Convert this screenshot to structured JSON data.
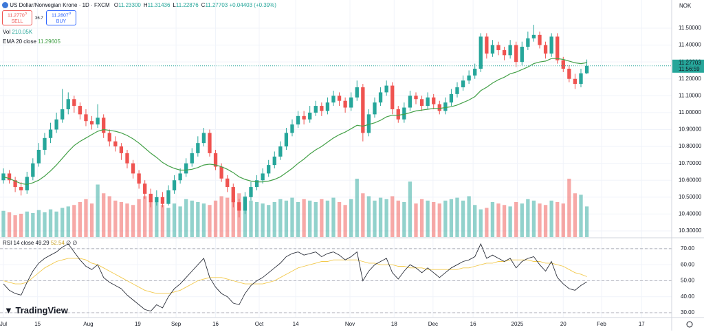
{
  "chart_data": {
    "type": "candlestick",
    "title": "US Dollar/Norwegian Krone · 1D · FXCM",
    "header": [
      {
        "key": "O",
        "value": "11.23300"
      },
      {
        "key": "H",
        "value": "11.31436"
      },
      {
        "key": "L",
        "value": "11.22876"
      },
      {
        "key": "C",
        "value": "11.27703"
      }
    ],
    "change": "+0.04403 (+0.39%)",
    "trade": {
      "sell_price": "11.2770",
      "sell_pip": "3",
      "sell": "SELL",
      "spread": "36.7",
      "buy_price": "11.2807",
      "buy_pip": "0",
      "buy": "BUY"
    },
    "currency": "NOK",
    "up_color": "#26a69a",
    "down_color": "#ef5350",
    "ylim": [
      10.2634,
      11.6667
    ],
    "yticks": [
      {
        "value": 10.3,
        "label": "10.30000"
      },
      {
        "value": 10.4,
        "label": "10.40000"
      },
      {
        "value": 10.5,
        "label": "10.50000"
      },
      {
        "value": 10.6,
        "label": "10.60000"
      },
      {
        "value": 10.7,
        "label": "10.70000"
      },
      {
        "value": 10.8,
        "label": "10.80000"
      },
      {
        "value": 10.9,
        "label": "10.90000"
      },
      {
        "value": 11.0,
        "label": "11.00000"
      },
      {
        "value": 11.1,
        "label": "11.10000"
      },
      {
        "value": 11.2,
        "label": "11.20000"
      },
      {
        "value": 11.3,
        "label": "11.30000"
      },
      {
        "value": 11.4,
        "label": "11.40000"
      },
      {
        "value": 11.5,
        "label": "11.50000"
      }
    ],
    "xlim": [
      -0.58,
      113.4
    ],
    "xticks": [
      {
        "value": 0,
        "label": "Jul"
      },
      {
        "value": 5.8,
        "label": "15"
      },
      {
        "value": 14.4,
        "label": "Aug"
      },
      {
        "value": 22.8,
        "label": "19"
      },
      {
        "value": 29.3,
        "label": "Sep"
      },
      {
        "value": 36.0,
        "label": "16"
      },
      {
        "value": 43.4,
        "label": "Oct"
      },
      {
        "value": 49.6,
        "label": "14"
      },
      {
        "value": 58.8,
        "label": "Nov"
      },
      {
        "value": 66.3,
        "label": "18"
      },
      {
        "value": 72.9,
        "label": "Dec"
      },
      {
        "value": 79.7,
        "label": "16"
      },
      {
        "value": 87.2,
        "label": "2025"
      },
      {
        "value": 95.0,
        "label": "20"
      },
      {
        "value": 101.5,
        "label": "Feb"
      },
      {
        "value": 108.3,
        "label": "17"
      }
    ],
    "candles": {
      "open": [
        10.6,
        10.64,
        10.6,
        10.56,
        10.54,
        10.62,
        10.7,
        10.78,
        10.85,
        10.9,
        10.96,
        11.02,
        11.08,
        11.04,
        10.99,
        10.95,
        10.93,
        10.97,
        10.88,
        10.83,
        10.8,
        10.76,
        10.7,
        10.64,
        10.58,
        10.52,
        10.47,
        10.5,
        10.46,
        10.54,
        10.6,
        10.64,
        10.7,
        10.76,
        10.82,
        10.88,
        10.76,
        10.68,
        10.61,
        10.56,
        10.47,
        10.42,
        10.5,
        10.56,
        10.6,
        10.64,
        10.69,
        10.74,
        10.8,
        10.88,
        10.93,
        10.98,
        10.96,
        11.0,
        11.04,
        11.01,
        11.06,
        11.1,
        11.07,
        11.03,
        11.09,
        11.15,
        10.88,
        10.99,
        11.06,
        11.12,
        11.16,
        11.02,
        10.96,
        11.03,
        11.1,
        11.08,
        11.04,
        11.09,
        11.05,
        11.01,
        11.06,
        11.11,
        11.15,
        11.19,
        11.22,
        11.26,
        11.45,
        11.35,
        11.4,
        11.37,
        11.34,
        11.4,
        11.3,
        11.39,
        11.44,
        11.46,
        11.4,
        11.35,
        11.45,
        11.31,
        11.26,
        11.2,
        11.17,
        11.233
      ],
      "high": [
        10.67,
        10.66,
        10.62,
        10.59,
        10.65,
        10.73,
        10.82,
        10.88,
        10.94,
        11.0,
        11.14,
        11.12,
        11.1,
        11.06,
        11.02,
        10.98,
        11.05,
        10.99,
        10.9,
        10.86,
        10.82,
        10.78,
        10.72,
        10.66,
        10.6,
        10.55,
        10.54,
        10.53,
        10.57,
        10.63,
        10.67,
        10.73,
        10.79,
        10.86,
        10.91,
        10.9,
        10.78,
        10.7,
        10.63,
        10.58,
        10.49,
        10.53,
        10.59,
        10.63,
        10.67,
        10.72,
        10.77,
        10.83,
        10.91,
        10.96,
        11.01,
        11.01,
        11.04,
        11.07,
        11.06,
        11.09,
        11.13,
        11.12,
        11.09,
        11.12,
        11.19,
        11.17,
        11.02,
        11.09,
        11.15,
        11.19,
        11.18,
        11.04,
        11.06,
        11.13,
        11.12,
        11.1,
        11.12,
        11.11,
        11.07,
        11.09,
        11.14,
        11.18,
        11.22,
        11.25,
        11.29,
        11.47,
        11.47,
        11.43,
        11.42,
        11.39,
        11.43,
        11.42,
        11.42,
        11.48,
        11.52,
        11.48,
        11.42,
        11.47,
        11.47,
        11.33,
        11.28,
        11.23,
        11.26,
        11.31436
      ],
      "low": [
        10.58,
        10.58,
        10.53,
        10.51,
        10.52,
        10.6,
        10.68,
        10.75,
        10.82,
        10.88,
        10.94,
        10.99,
        11.0,
        10.96,
        10.92,
        10.9,
        10.91,
        10.85,
        10.8,
        10.77,
        10.72,
        10.67,
        10.61,
        10.55,
        10.49,
        10.44,
        10.45,
        10.44,
        10.45,
        10.52,
        10.58,
        10.62,
        10.68,
        10.74,
        10.8,
        10.74,
        10.66,
        10.59,
        10.53,
        10.44,
        10.38,
        10.4,
        10.48,
        10.54,
        10.58,
        10.62,
        10.67,
        10.72,
        10.78,
        10.86,
        10.91,
        10.93,
        10.94,
        10.98,
        10.98,
        10.99,
        11.04,
        11.04,
        11.0,
        11.01,
        11.07,
        10.83,
        10.86,
        10.97,
        11.04,
        11.1,
        10.99,
        10.94,
        10.94,
        11.01,
        11.05,
        11.01,
        11.02,
        11.02,
        10.99,
        10.99,
        11.04,
        11.09,
        11.13,
        11.17,
        11.2,
        11.24,
        11.32,
        11.33,
        11.34,
        11.31,
        11.32,
        11.27,
        11.28,
        11.37,
        11.42,
        11.38,
        11.32,
        11.33,
        11.29,
        11.24,
        11.18,
        11.14,
        11.15,
        11.22876
      ],
      "close": [
        10.64,
        10.6,
        10.56,
        10.54,
        10.62,
        10.7,
        10.78,
        10.85,
        10.9,
        10.96,
        11.02,
        11.08,
        11.04,
        10.99,
        10.95,
        10.93,
        10.97,
        10.88,
        10.83,
        10.8,
        10.76,
        10.7,
        10.64,
        10.58,
        10.52,
        10.47,
        10.5,
        10.46,
        10.54,
        10.6,
        10.64,
        10.7,
        10.76,
        10.82,
        10.88,
        10.76,
        10.68,
        10.61,
        10.56,
        10.47,
        10.42,
        10.5,
        10.56,
        10.6,
        10.64,
        10.69,
        10.74,
        10.8,
        10.88,
        10.93,
        10.98,
        10.96,
        11.0,
        11.04,
        11.01,
        11.06,
        11.1,
        11.07,
        11.03,
        11.09,
        11.15,
        10.88,
        10.99,
        11.06,
        11.12,
        11.16,
        11.02,
        10.96,
        11.03,
        11.1,
        11.08,
        11.04,
        11.09,
        11.05,
        11.01,
        11.06,
        11.11,
        11.15,
        11.19,
        11.22,
        11.26,
        11.45,
        11.35,
        11.4,
        11.37,
        11.34,
        11.4,
        11.3,
        11.39,
        11.44,
        11.46,
        11.4,
        11.35,
        11.45,
        11.31,
        11.26,
        11.2,
        11.17,
        11.233,
        11.27703
      ]
    },
    "last_price": {
      "label": "11.27703",
      "countdown": "11:56:59"
    },
    "volume": {
      "name": "Vol",
      "last_label": "210.05K",
      "values": [
        180,
        170,
        150,
        160,
        175,
        165,
        185,
        170,
        190,
        175,
        200,
        210,
        220,
        240,
        260,
        230,
        360,
        300,
        280,
        250,
        240,
        230,
        220,
        260,
        280,
        250,
        240,
        220,
        200,
        230,
        210,
        260,
        250,
        240,
        230,
        220,
        250,
        280,
        270,
        260,
        300,
        280,
        250,
        240,
        230,
        220,
        240,
        260,
        250,
        270,
        240,
        260,
        250,
        240,
        260,
        250,
        270,
        240,
        220,
        260,
        400,
        300,
        280,
        250,
        270,
        260,
        280,
        250,
        240,
        380,
        230,
        260,
        250,
        240,
        230,
        250,
        260,
        270,
        250,
        280,
        220,
        190,
        200,
        240,
        230,
        220,
        210,
        240,
        230,
        260,
        250,
        230,
        220,
        250,
        240,
        230,
        400,
        300,
        290,
        210.05
      ]
    },
    "ema": {
      "name": "EMA 20 close",
      "last_label": "11.29605",
      "color": "#43a047",
      "values": [
        10.62,
        10.61,
        10.595,
        10.58,
        10.575,
        10.585,
        10.6,
        10.625,
        10.655,
        10.69,
        10.73,
        10.77,
        10.805,
        10.83,
        10.85,
        10.87,
        10.89,
        10.9,
        10.895,
        10.89,
        10.88,
        10.865,
        10.845,
        10.82,
        10.79,
        10.76,
        10.735,
        10.705,
        10.685,
        10.67,
        10.66,
        10.66,
        10.665,
        10.675,
        10.69,
        10.695,
        10.69,
        10.68,
        10.665,
        10.645,
        10.62,
        10.605,
        10.595,
        10.59,
        10.59,
        10.595,
        10.605,
        10.62,
        10.645,
        10.67,
        10.7,
        10.725,
        10.755,
        10.78,
        10.8,
        10.825,
        10.85,
        10.87,
        10.885,
        10.905,
        10.925,
        10.92,
        10.93,
        10.94,
        10.955,
        10.975,
        10.985,
        10.985,
        10.99,
        11.0,
        11.01,
        11.015,
        11.02,
        11.025,
        11.025,
        11.03,
        11.035,
        11.045,
        11.06,
        11.075,
        11.095,
        11.13,
        11.15,
        11.175,
        11.195,
        11.21,
        11.23,
        11.24,
        11.255,
        11.27,
        11.29,
        11.3,
        11.305,
        11.32,
        11.32,
        11.315,
        11.305,
        11.295,
        11.29,
        11.29605
      ]
    },
    "rsi": {
      "name": "RSI 14 close",
      "last_label": "49.29",
      "ma_last_label": "52.54",
      "extra": "∅ ∅",
      "color": "#2a2e39",
      "ma_color": "#f2c94c",
      "ylim": [
        27,
        76.4
      ],
      "yticks": [
        {
          "value": 30,
          "label": "30.00"
        },
        {
          "value": 40,
          "label": "40.00"
        },
        {
          "value": 50,
          "label": "50.00"
        },
        {
          "value": 60,
          "label": "60.00"
        },
        {
          "value": 70,
          "label": "70.00"
        }
      ],
      "bands": [
        30,
        50,
        70
      ],
      "values": [
        48,
        44,
        42,
        41,
        49,
        56,
        61,
        64,
        66,
        68,
        71,
        73,
        68,
        63,
        59,
        57,
        60,
        52,
        49,
        47,
        45,
        41,
        38,
        35,
        32,
        31,
        35,
        33,
        40,
        45,
        48,
        52,
        56,
        60,
        64,
        52,
        46,
        42,
        40,
        36,
        35,
        42,
        47,
        50,
        52,
        55,
        58,
        61,
        65,
        67,
        68,
        66,
        67,
        68,
        65,
        67,
        68,
        66,
        63,
        65,
        68,
        50,
        56,
        60,
        62,
        64,
        55,
        51,
        56,
        60,
        58,
        55,
        58,
        55,
        52,
        55,
        58,
        60,
        62,
        63,
        65,
        73,
        64,
        66,
        64,
        62,
        64,
        58,
        62,
        64,
        65,
        60,
        56,
        62,
        52,
        48,
        45,
        44,
        47,
        49.29
      ],
      "ma_values": [
        50,
        49,
        48,
        48,
        49,
        52,
        55,
        58,
        60,
        62,
        63,
        64,
        64,
        64,
        63,
        61,
        60,
        58,
        56,
        54,
        52,
        50,
        48,
        46,
        44,
        43,
        42,
        42,
        42,
        43,
        44,
        46,
        48,
        50,
        51,
        52,
        52,
        52,
        51,
        50,
        49,
        48,
        48,
        48,
        48,
        49,
        50,
        52,
        54,
        56,
        58,
        59,
        60,
        61,
        62,
        62,
        63,
        63,
        63,
        63,
        63,
        62,
        61,
        61,
        60,
        60,
        60,
        59,
        59,
        58,
        58,
        58,
        57,
        57,
        57,
        57,
        57,
        57,
        58,
        58,
        59,
        60,
        61,
        61,
        62,
        62,
        63,
        63,
        63,
        63,
        62,
        62,
        61,
        61,
        60,
        59,
        57,
        55,
        54,
        52.54
      ]
    },
    "brand": "TradingView"
  }
}
